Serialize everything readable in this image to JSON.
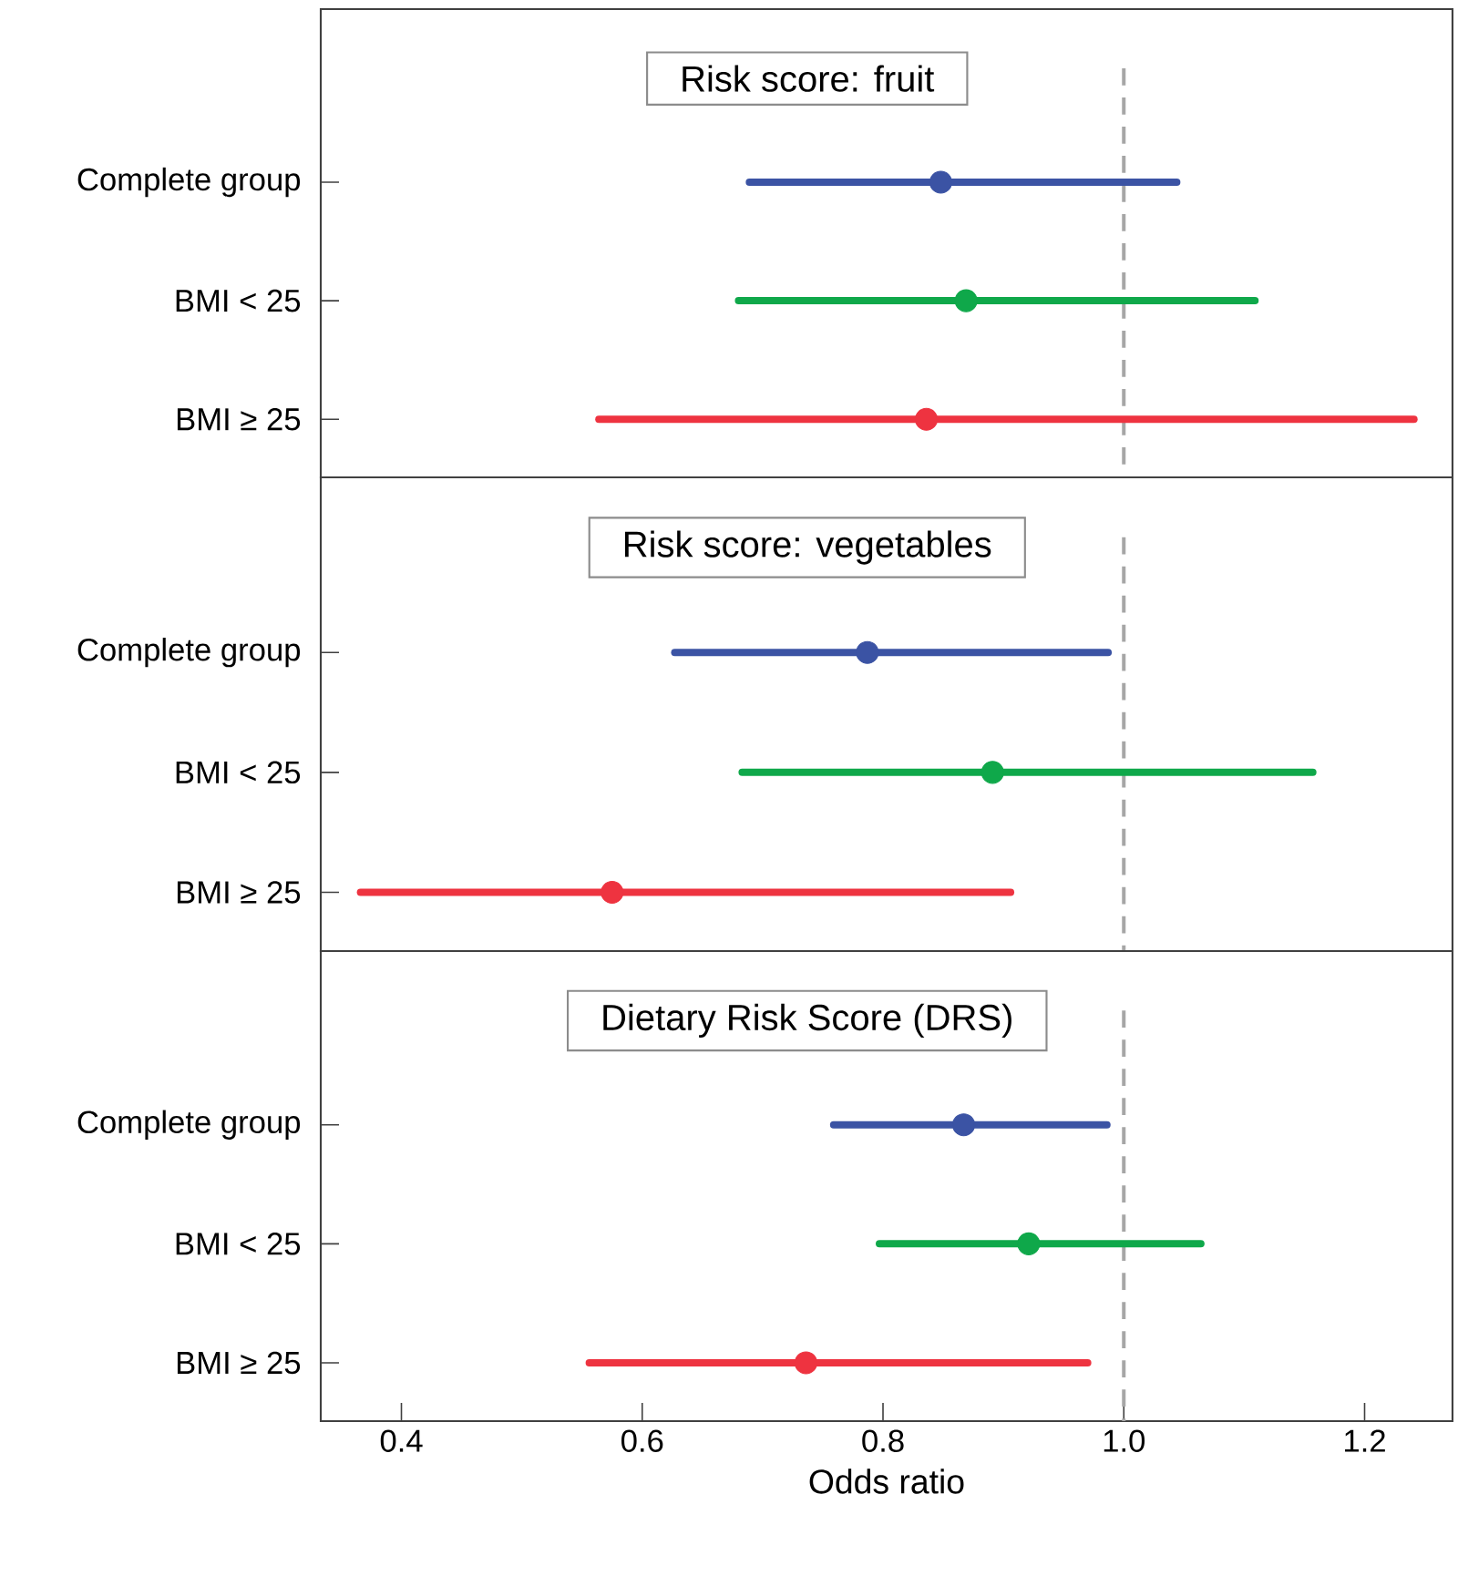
{
  "chart_data": [
    {
      "type": "scatter",
      "orientation": "horizontal",
      "title": "Risk score: fruit",
      "categories": [
        "Complete  group",
        "BMI < 25",
        "BMI ≥ 25"
      ],
      "values": [
        0.848,
        0.869,
        0.836
      ],
      "errors": [
        [
          0.689,
          1.044
        ],
        [
          0.68,
          1.109
        ],
        [
          0.564,
          1.241
        ]
      ],
      "colors": [
        "#3b53a4",
        "#0fa84a",
        "#ee3340"
      ],
      "marker": "circle",
      "xlim": [
        0.333,
        1.273
      ],
      "xticks": [
        0.4,
        0.6,
        0.8,
        1,
        1.2
      ],
      "tick_labels": "y",
      "ref_lines": [
        {
          "axis": "x",
          "value": 1,
          "color": "#a6a6a6",
          "line_style": "dashed"
        }
      ]
    },
    {
      "type": "scatter",
      "orientation": "horizontal",
      "title": "Risk score: vegetables",
      "categories": [
        "Complete  group",
        "BMI < 25",
        "BMI ≥ 25"
      ],
      "values": [
        0.787,
        0.891,
        0.575
      ],
      "errors": [
        [
          0.627,
          0.987
        ],
        [
          0.683,
          1.157
        ],
        [
          0.366,
          0.906
        ]
      ],
      "colors": [
        "#3b53a4",
        "#0fa84a",
        "#ee3340"
      ],
      "marker": "circle",
      "xlim": [
        0.333,
        1.273
      ],
      "xticks": [
        0.4,
        0.6,
        0.8,
        1,
        1.2
      ],
      "tick_labels": "y",
      "ref_lines": [
        {
          "axis": "x",
          "value": 1,
          "color": "#a6a6a6",
          "line_style": "dashed"
        }
      ]
    },
    {
      "type": "scatter",
      "orientation": "horizontal",
      "title": "Dietary Risk Score (DRS)",
      "xlabel": "Odds ratio",
      "categories": [
        "Complete  group",
        "BMI < 25",
        "BMI ≥ 25"
      ],
      "values": [
        0.867,
        0.921,
        0.736
      ],
      "errors": [
        [
          0.759,
          0.986
        ],
        [
          0.797,
          1.064
        ],
        [
          0.556,
          0.97
        ]
      ],
      "colors": [
        "#3b53a4",
        "#0fa84a",
        "#ee3340"
      ],
      "marker": "circle",
      "xlim": [
        0.333,
        1.273
      ],
      "xticks": [
        0.4,
        0.6,
        0.8,
        {
          "value": 1,
          "label": "1.0"
        },
        1.2
      ],
      "ref_lines": [
        {
          "axis": "x",
          "value": 1,
          "color": "#a6a6a6",
          "line_style": "dashed"
        }
      ]
    }
  ]
}
